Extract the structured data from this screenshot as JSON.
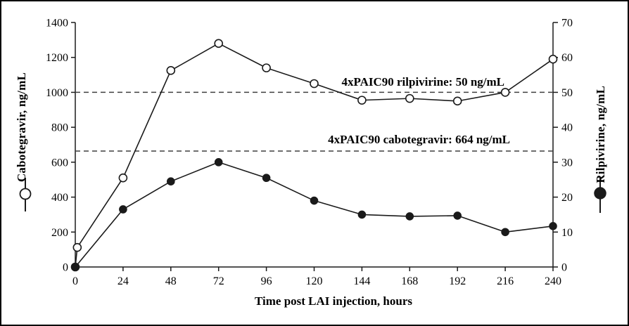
{
  "chart_data": {
    "type": "line",
    "title": "",
    "xlabel": "Time post LAI injection, hours",
    "x_axis": {
      "label": "Time post LAI injection, hours",
      "ticks": [
        0,
        24,
        48,
        72,
        96,
        120,
        144,
        168,
        192,
        216,
        240
      ]
    },
    "xlim": [
      0,
      240
    ],
    "left_axis": {
      "label": "Cabotegravir, ng/mL",
      "ticks": [
        0,
        200,
        400,
        600,
        800,
        1000,
        1200,
        1400
      ],
      "lim": [
        0,
        1400
      ]
    },
    "right_axis": {
      "label": "Rilpivirine, ng/mL",
      "ticks": [
        0,
        10,
        20,
        30,
        40,
        50,
        60,
        70
      ],
      "lim": [
        0,
        70
      ]
    },
    "series": [
      {
        "name": "Cabotegravir",
        "axis": "left",
        "marker": "open-circle",
        "x": [
          0,
          1,
          24,
          48,
          72,
          96,
          120,
          144,
          168,
          192,
          216,
          240
        ],
        "y": [
          0,
          112,
          510,
          1125,
          1280,
          1140,
          1050,
          955,
          965,
          950,
          1000,
          1190
        ]
      },
      {
        "name": "Rilpivirine",
        "axis": "right",
        "marker": "filled-circle",
        "x": [
          0,
          24,
          48,
          72,
          96,
          120,
          144,
          168,
          192,
          216,
          240
        ],
        "y": [
          0,
          16.5,
          24.5,
          30,
          25.5,
          19,
          15,
          14.5,
          14.7,
          10,
          11.7
        ]
      }
    ],
    "reference_lines": [
      {
        "label": "4xPAIC90 rilpivirine: 50 ng/mL",
        "left_value": 1000,
        "right_value": 50,
        "style": "dashed"
      },
      {
        "label": "4xPAIC90 cabotegravir: 664 ng/mL",
        "left_value": 664,
        "style": "dashed"
      }
    ],
    "legend": [
      {
        "name": "Cabotegravir",
        "marker": "open-circle"
      },
      {
        "name": "Rilpivirine",
        "marker": "filled-circle"
      }
    ],
    "colors": {
      "line": "#1a1a1a",
      "dashed": "#3f3f3f",
      "background": "#ffffff",
      "border": "#000000"
    },
    "grid": "off",
    "legend_position": "axis-titles"
  }
}
